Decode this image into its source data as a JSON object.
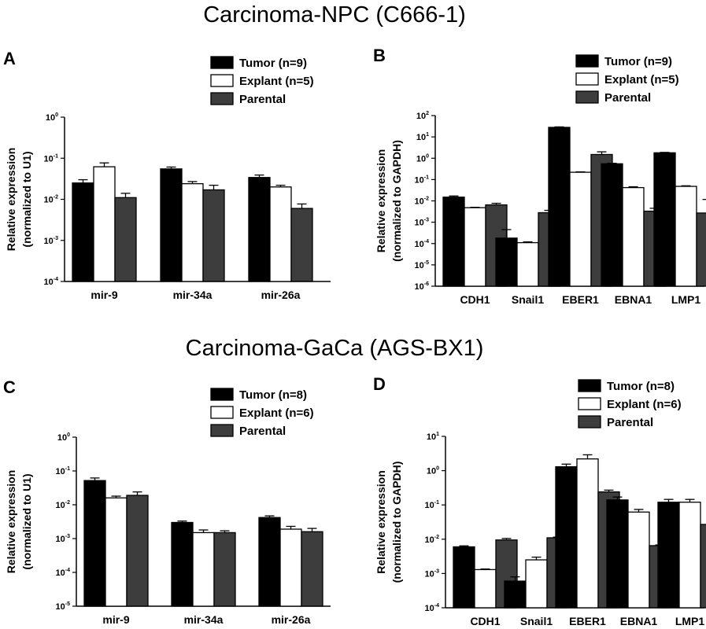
{
  "section_titles": [
    "Carcinoma-NPC (C666-1)",
    "Carcinoma-GaCa (AGS-BX1)"
  ],
  "colors": {
    "Tumor": "#000000",
    "Explant": "#ffffff",
    "Parental": "#3d3d3d",
    "axis": "#000000"
  },
  "chart_data": [
    {
      "panel": "A",
      "type": "bar",
      "log_scale": true,
      "ylim": [
        0.0001,
        1
      ],
      "ytick_exponents": [
        0,
        -1,
        -2,
        -3,
        -4
      ],
      "ylabel_lines": [
        "Relative expression",
        "(normalized to U1)"
      ],
      "categories": [
        "mir-9",
        "mir-34a",
        "mir-26a"
      ],
      "legend_position": "top-right",
      "series": [
        {
          "name": "Tumor (n=9)",
          "values": [
            0.025,
            0.055,
            0.034
          ],
          "errors": [
            0.005,
            0.006,
            0.005
          ]
        },
        {
          "name": "Explant (n=5)",
          "values": [
            0.062,
            0.024,
            0.02
          ],
          "errors": [
            0.015,
            0.003,
            0.002
          ]
        },
        {
          "name": "Parental",
          "values": [
            0.011,
            0.017,
            0.006
          ],
          "errors": [
            0.003,
            0.005,
            0.0017
          ]
        }
      ]
    },
    {
      "panel": "B",
      "type": "bar",
      "log_scale": true,
      "ylim": [
        1e-06,
        100
      ],
      "ytick_exponents": [
        2,
        1,
        0,
        -1,
        -2,
        -3,
        -4,
        -5,
        -6
      ],
      "ylabel_lines": [
        "Relative expression",
        "(normalized to GAPDH)"
      ],
      "categories": [
        "CDH1",
        "Snail1",
        "EBER1",
        "EBNA1",
        "LMP1"
      ],
      "legend_position": "top-right",
      "series": [
        {
          "name": "Tumor (n=9)",
          "values": [
            0.015,
            0.00018,
            28,
            0.55,
            1.8
          ],
          "errors": [
            0.002,
            0.00027,
            1.5,
            0.03,
            0.08
          ]
        },
        {
          "name": "Explant (n=5)",
          "values": [
            0.0048,
            0.00011,
            0.22,
            0.042,
            0.048
          ],
          "errors": [
            0.0002,
            1e-05,
            0.01,
            0.004,
            0.003
          ]
        },
        {
          "name": "Parental",
          "values": [
            0.0065,
            0.0028,
            1.5,
            0.0033,
            0.0027
          ],
          "errors": [
            0.0012,
            0.0008,
            0.5,
            0.0012,
            0.009
          ]
        }
      ]
    },
    {
      "panel": "C",
      "type": "bar",
      "log_scale": true,
      "ylim": [
        1e-05,
        1
      ],
      "ytick_exponents": [
        0,
        -1,
        -2,
        -3,
        -4,
        -5
      ],
      "ylabel_lines": [
        "Relative expression",
        "(normalized to U1)"
      ],
      "categories": [
        "mir-9",
        "mir-34a",
        "mir-26a"
      ],
      "legend_position": "top-right",
      "series": [
        {
          "name": "Tumor (n=8)",
          "values": [
            0.052,
            0.003,
            0.0042
          ],
          "errors": [
            0.01,
            0.0003,
            0.0005
          ]
        },
        {
          "name": "Explant (n=6)",
          "values": [
            0.016,
            0.0015,
            0.0019
          ],
          "errors": [
            0.002,
            0.0003,
            0.0004
          ]
        },
        {
          "name": "Parental",
          "values": [
            0.019,
            0.0015,
            0.0016
          ],
          "errors": [
            0.005,
            0.0002,
            0.0004
          ]
        }
      ]
    },
    {
      "panel": "D",
      "type": "bar",
      "log_scale": true,
      "ylim": [
        0.0001,
        10
      ],
      "ytick_exponents": [
        1,
        0,
        -1,
        -2,
        -3,
        -4
      ],
      "ylabel_lines": [
        "Relative expression",
        "(normalized to GAPDH)"
      ],
      "categories": [
        "CDH1",
        "Snail1",
        "EBER1",
        "EBNA1",
        "LMP1"
      ],
      "legend_position": "top-right",
      "series": [
        {
          "name": "Tumor (n=8)",
          "values": [
            0.006,
            0.0006,
            1.3,
            0.14,
            0.12
          ],
          "errors": [
            0.0004,
            0.0002,
            0.25,
            0.03,
            0.025
          ]
        },
        {
          "name": "Explant (n=6)",
          "values": [
            0.0013,
            0.0025,
            2.2,
            0.062,
            0.12
          ],
          "errors": [
            5e-05,
            0.0005,
            0.7,
            0.012,
            0.025
          ]
        },
        {
          "name": "Parental",
          "values": [
            0.0095,
            0.011,
            0.24,
            0.0065,
            0.027
          ],
          "errors": [
            0.001,
            0.0005,
            0.03,
            0.0003,
            0.001
          ]
        }
      ]
    }
  ]
}
